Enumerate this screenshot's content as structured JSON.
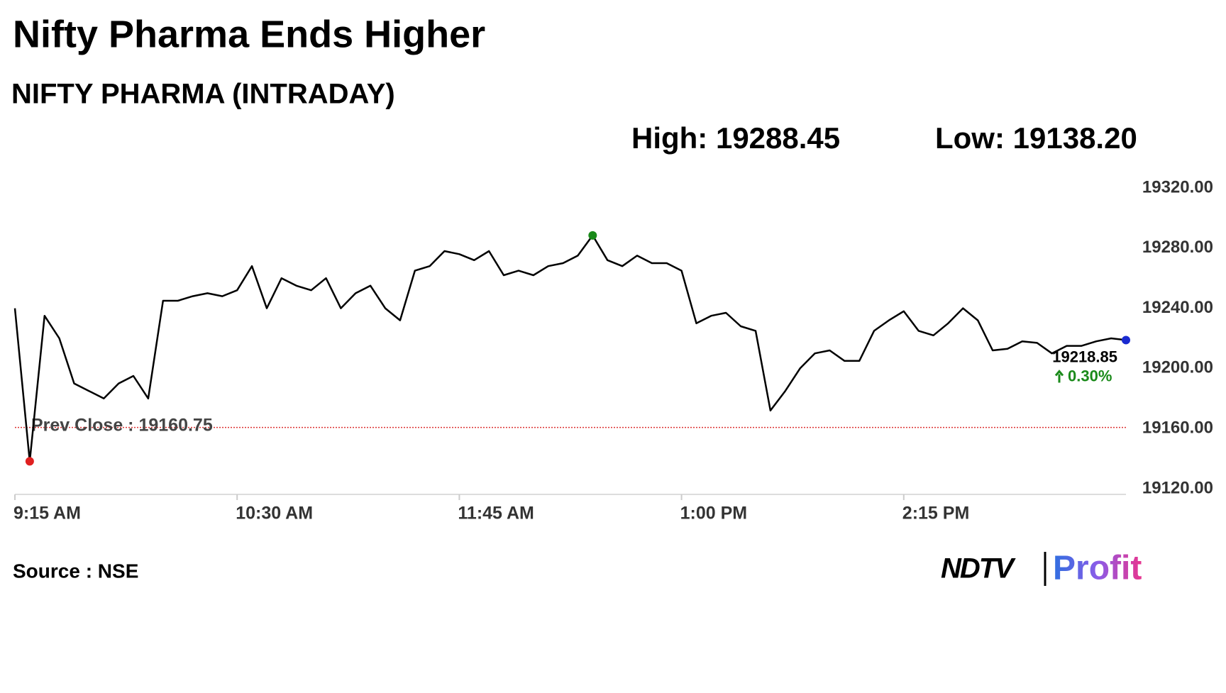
{
  "chart_data": {
    "type": "line",
    "title": "Nifty Pharma Ends Higher",
    "subtitle": "NIFTY PHARMA (INTRADAY)",
    "high": {
      "label": "High:",
      "value": 19288.45
    },
    "low": {
      "label": "Low:",
      "value": 19138.2,
      "value_label": "19138.20"
    },
    "prev_close": {
      "label": "Prev Close :",
      "value": 19160.75
    },
    "change": {
      "value": 0.3,
      "label": "0.30%"
    },
    "color": "#000000",
    "categories": [
      "9:15 AM",
      null,
      null,
      null,
      null,
      null,
      null,
      null,
      null,
      null,
      null,
      null,
      null,
      null,
      null,
      "10:30 AM",
      null,
      null,
      null,
      null,
      null,
      null,
      null,
      null,
      null,
      null,
      null,
      null,
      null,
      null,
      "11:45 AM",
      null,
      null,
      null,
      null,
      null,
      null,
      null,
      null,
      null,
      null,
      null,
      null,
      null,
      null,
      "1:00 PM",
      null,
      null,
      null,
      null,
      null,
      null,
      null,
      null,
      null,
      null,
      null,
      null,
      null,
      null,
      "2:15 PM",
      null,
      null,
      null,
      null,
      null,
      null,
      null,
      null,
      null,
      null,
      null,
      null,
      null,
      null,
      null
    ],
    "values": [
      19240,
      19138.2,
      19235,
      19220,
      19190,
      19185,
      19180,
      19190,
      19195,
      19180,
      19245,
      19245,
      19248,
      19250,
      19248,
      19252,
      19268,
      19240,
      19260,
      19255,
      19252,
      19260,
      19240,
      19250,
      19255,
      19240,
      19232,
      19265,
      19268,
      19278,
      19276,
      19272,
      19278,
      19262,
      19265,
      19262,
      19268,
      19270,
      19275,
      19288.45,
      19272,
      19268,
      19275,
      19270,
      19270,
      19265,
      19230,
      19235,
      19237,
      19228,
      19225,
      19172,
      19185,
      19200,
      19210,
      19212,
      19205,
      19205,
      19225,
      19232,
      19238,
      19225,
      19222,
      19230,
      19240,
      19232,
      19212,
      19213,
      19218,
      19217,
      19210,
      19215,
      19215,
      19218,
      19220,
      19218.85
    ],
    "ylim": [
      19120,
      19320
    ],
    "yticks": [
      {
        "value": 19120,
        "label": "19120.00"
      },
      {
        "value": 19160,
        "label": "19160.00"
      },
      {
        "value": 19200,
        "label": "19200.00"
      },
      {
        "value": 19240,
        "label": "19240.00"
      },
      {
        "value": 19280,
        "label": "19280.00"
      },
      {
        "value": 19320,
        "label": "19320.00"
      }
    ],
    "source": "Source : NSE",
    "logo": {
      "left": "NDTV",
      "right": "Profit"
    }
  }
}
